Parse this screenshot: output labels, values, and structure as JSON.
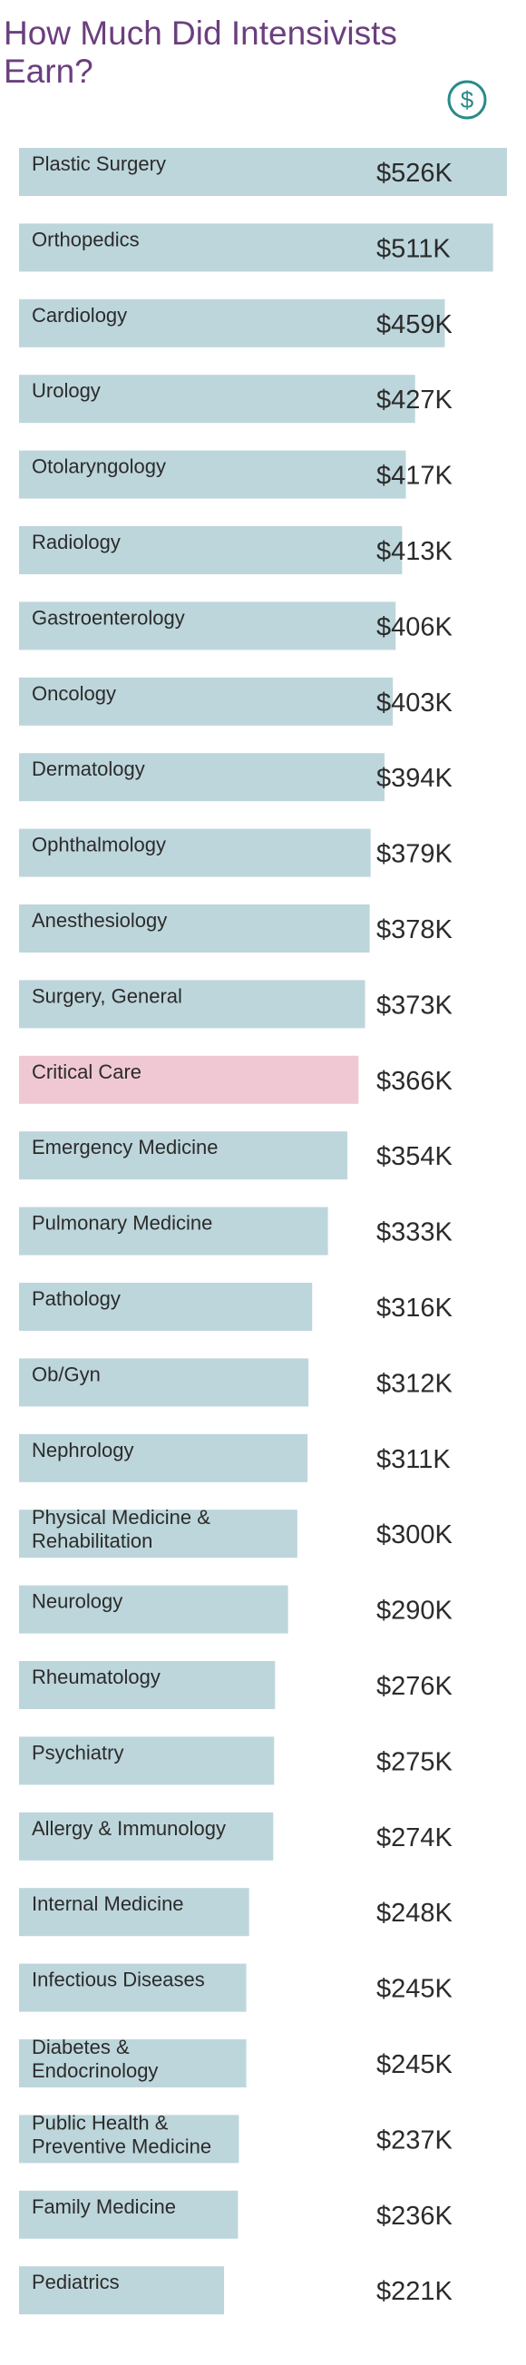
{
  "title": "How Much Did Intensivists Earn?",
  "icon": "dollar-circle-icon",
  "colors": {
    "bar": "#bdd6db",
    "highlight_bar": "#f0c8d3",
    "highlight_text": "#c0406a",
    "title": "#6b3f7e",
    "icon": "#2a8a8a"
  },
  "chart_data": {
    "type": "bar",
    "orientation": "horizontal",
    "unit": "$K",
    "highlight": "Critical Care",
    "categories": [
      "Plastic Surgery",
      "Orthopedics",
      "Cardiology",
      "Urology",
      "Otolaryngology",
      "Radiology",
      "Gastroenterology",
      "Oncology",
      "Dermatology",
      "Ophthalmology",
      "Anesthesiology",
      "Surgery, General",
      "Critical Care",
      "Emergency Medicine",
      "Pulmonary Medicine",
      "Pathology",
      "Ob/Gyn",
      "Nephrology",
      "Physical Medicine & Rehabilitation",
      "Neurology",
      "Rheumatology",
      "Psychiatry",
      "Allergy & Immunology",
      "Internal Medicine",
      "Infectious Diseases",
      "Diabetes & Endocrinology",
      "Public Health & Preventive Medicine",
      "Family Medicine",
      "Pediatrics"
    ],
    "values": [
      526,
      511,
      459,
      427,
      417,
      413,
      406,
      403,
      394,
      379,
      378,
      373,
      366,
      354,
      333,
      316,
      312,
      311,
      300,
      290,
      276,
      275,
      274,
      248,
      245,
      245,
      237,
      236,
      221
    ],
    "value_labels": [
      "$526K",
      "$511K",
      "$459K",
      "$427K",
      "$417K",
      "$413K",
      "$406K",
      "$403K",
      "$394K",
      "$379K",
      "$378K",
      "$373K",
      "$366K",
      "$354K",
      "$333K",
      "$316K",
      "$312K",
      "$311K",
      "$300K",
      "$290K",
      "$276K",
      "$275K",
      "$274K",
      "$248K",
      "$245K",
      "$245K",
      "$237K",
      "$236K",
      "$221K"
    ],
    "title": "How Much Did Intensivists Earn?",
    "xlabel": "",
    "ylabel": ""
  }
}
